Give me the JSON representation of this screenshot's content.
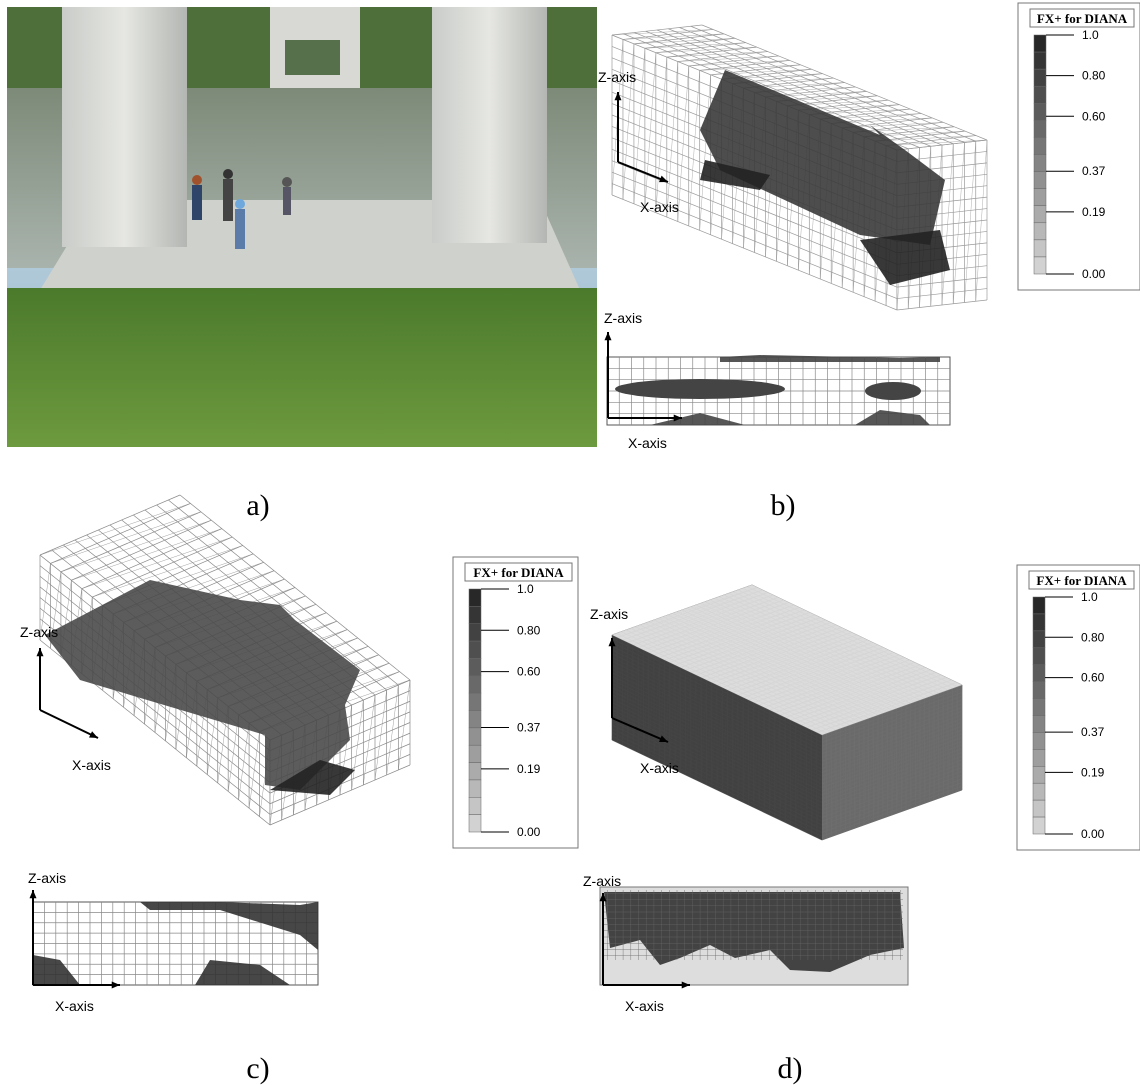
{
  "panels": [
    {
      "label": "a)"
    },
    {
      "label": "b)",
      "view3d": {
        "z": "Z-axis",
        "x": "X-axis"
      },
      "view2d": {
        "z": "Z-axis",
        "x": "X-axis"
      }
    },
    {
      "label": "c)",
      "view3d": {
        "z": "Z-axis",
        "x": "X-axis"
      },
      "view2d": {
        "z": "Z-axis",
        "x": "X-axis"
      }
    },
    {
      "label": "d)",
      "view3d": {
        "z": "Z-axis",
        "x": "X-axis"
      },
      "view2d": {
        "z": "Z-axis",
        "x": "X-axis"
      }
    }
  ],
  "legends": [
    {
      "title": "FX+ for DIANA",
      "ticks": [
        "1.0",
        "0.80",
        "0.60",
        "0.37",
        "0.19",
        "0.00"
      ]
    },
    {
      "title": "FX+ for DIANA",
      "ticks": [
        "1.0",
        "0.80",
        "0.60",
        "0.37",
        "0.19",
        "0.00"
      ]
    },
    {
      "title": "FX+ for DIANA",
      "ticks": [
        "1.0",
        "0.80",
        "0.60",
        "0.37",
        "0.19",
        "0.00"
      ]
    }
  ]
}
